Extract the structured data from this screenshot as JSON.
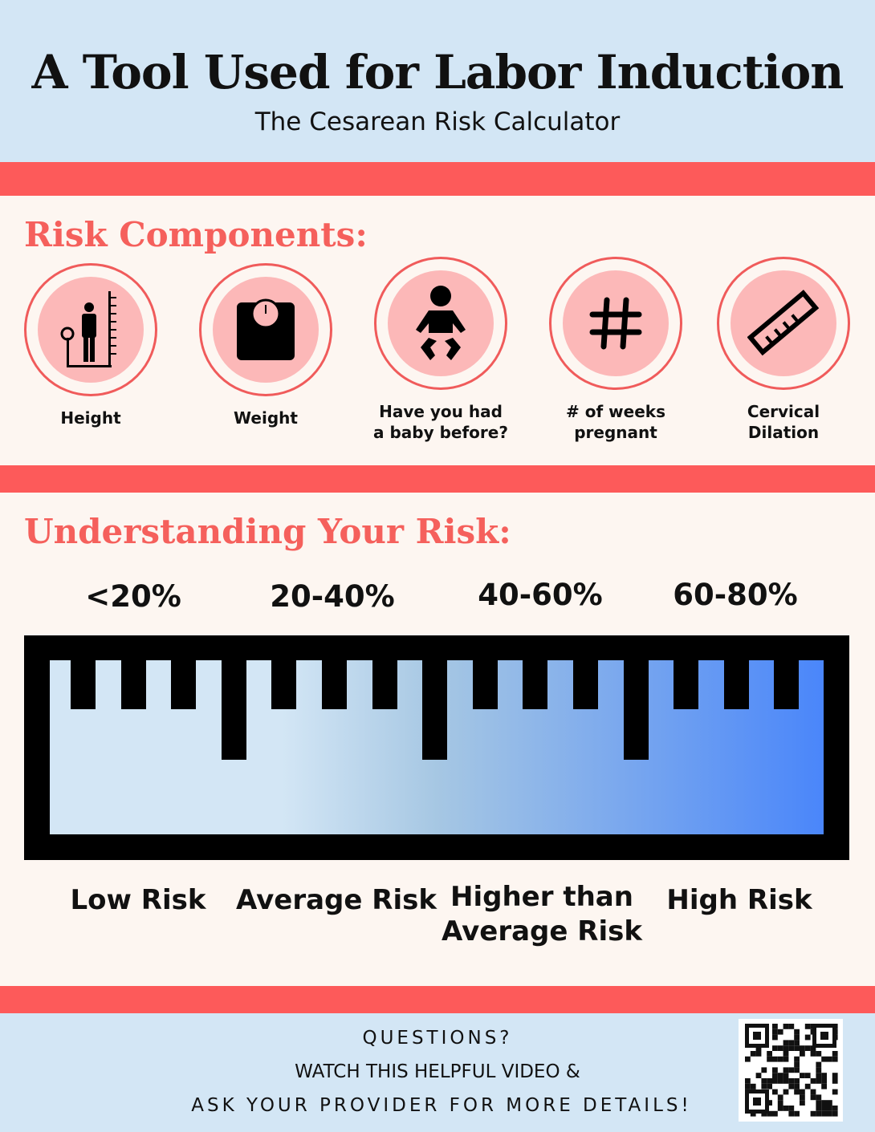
{
  "header": {
    "title": "A Tool Used for Labor Induction",
    "subtitle": "The Cesarean Risk Calculator"
  },
  "components": {
    "title": "Risk Components:",
    "items": [
      {
        "label": "Height",
        "icon": "height-measure-icon"
      },
      {
        "label": "Weight",
        "icon": "scale-icon"
      },
      {
        "label": "Have you had a baby before?",
        "icon": "baby-icon"
      },
      {
        "label": "# of weeks pregnant",
        "icon": "hash-icon"
      },
      {
        "label": "Cervical Dilation",
        "icon": "ruler-icon"
      }
    ]
  },
  "risk": {
    "title": "Understanding Your Risk:",
    "ranges": [
      "<20%",
      "20-40%",
      "40-60%",
      "60-80%"
    ],
    "levels": [
      "Low Risk",
      "Average Risk",
      "Higher than Average Risk",
      "High Risk"
    ],
    "gradient": [
      "#d3e6f5",
      "#d3e6f5",
      "#a6c7e3",
      "#4a86fa"
    ]
  },
  "footer": {
    "line1": "QUESTIONS?",
    "line2": "WATCH THIS HELPFUL VIDEO &",
    "line3": "ASK YOUR PROVIDER FOR MORE DETAILS!",
    "qr": "qr-code-icon"
  },
  "colors": {
    "accent": "#fd5a5a",
    "heading": "#f5605c",
    "pink": "#fcb8b8",
    "header_bg": "#d3e6f5",
    "page_bg": "#fdf6f1"
  }
}
